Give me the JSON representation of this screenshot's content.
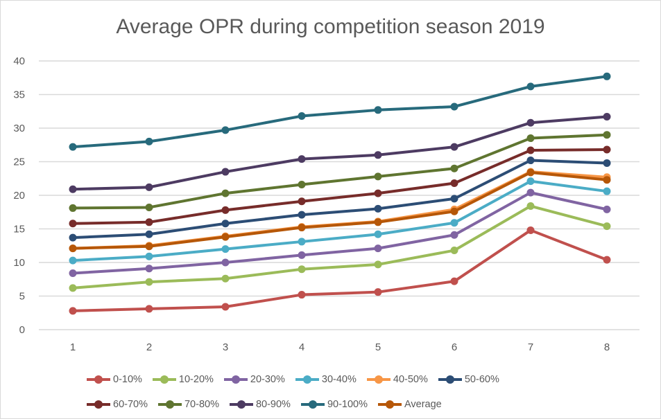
{
  "chart_data": {
    "type": "line",
    "title": "Average OPR during competition season 2019",
    "xlabel": "",
    "ylabel": "",
    "x": [
      1,
      2,
      3,
      4,
      5,
      6,
      7,
      8
    ],
    "x_tick_labels": [
      "1",
      "2",
      "3",
      "4",
      "5",
      "6",
      "7",
      "8"
    ],
    "ylim": [
      0,
      40
    ],
    "y_ticks": [
      0,
      5,
      10,
      15,
      20,
      25,
      30,
      35,
      40
    ],
    "y_tick_labels": [
      "0",
      "5",
      "10",
      "15",
      "20",
      "25",
      "30",
      "35",
      "40"
    ],
    "grid": "horizontal",
    "legend_position": "bottom",
    "series": [
      {
        "name": "0-10%",
        "color": "#c0504d",
        "values": [
          2.8,
          3.1,
          3.4,
          5.2,
          5.6,
          7.2,
          14.8,
          10.4
        ]
      },
      {
        "name": "10-20%",
        "color": "#9bbb59",
        "values": [
          6.2,
          7.1,
          7.6,
          9.0,
          9.7,
          11.8,
          18.4,
          15.4
        ]
      },
      {
        "name": "20-30%",
        "color": "#8064a2",
        "values": [
          8.4,
          9.1,
          10.0,
          11.1,
          12.1,
          14.1,
          20.4,
          17.9
        ]
      },
      {
        "name": "30-40%",
        "color": "#4bacc6",
        "values": [
          10.3,
          10.9,
          12.0,
          13.1,
          14.2,
          15.9,
          22.1,
          20.6
        ]
      },
      {
        "name": "40-50%",
        "color": "#f79646",
        "values": [
          12.1,
          12.5,
          13.9,
          15.3,
          16.1,
          17.9,
          23.5,
          22.7
        ]
      },
      {
        "name": "50-60%",
        "color": "#2c4d75",
        "values": [
          13.7,
          14.2,
          15.8,
          17.1,
          18.0,
          19.5,
          25.2,
          24.8
        ]
      },
      {
        "name": "60-70%",
        "color": "#772c2a",
        "values": [
          15.8,
          16.0,
          17.8,
          19.1,
          20.3,
          21.8,
          26.7,
          26.8
        ]
      },
      {
        "name": "70-80%",
        "color": "#5f7530",
        "values": [
          18.1,
          18.2,
          20.3,
          21.6,
          22.8,
          24.0,
          28.5,
          29.0
        ]
      },
      {
        "name": "80-90%",
        "color": "#4d3b62",
        "values": [
          20.9,
          21.2,
          23.5,
          25.4,
          26.0,
          27.2,
          30.8,
          31.7
        ]
      },
      {
        "name": "90-100%",
        "color": "#276a7c",
        "values": [
          27.2,
          28.0,
          29.7,
          31.8,
          32.7,
          33.2,
          36.2,
          37.7
        ]
      },
      {
        "name": "Average",
        "color": "#b65708",
        "values": [
          12.1,
          12.4,
          13.8,
          15.2,
          16.0,
          17.6,
          23.4,
          22.3
        ]
      }
    ]
  }
}
